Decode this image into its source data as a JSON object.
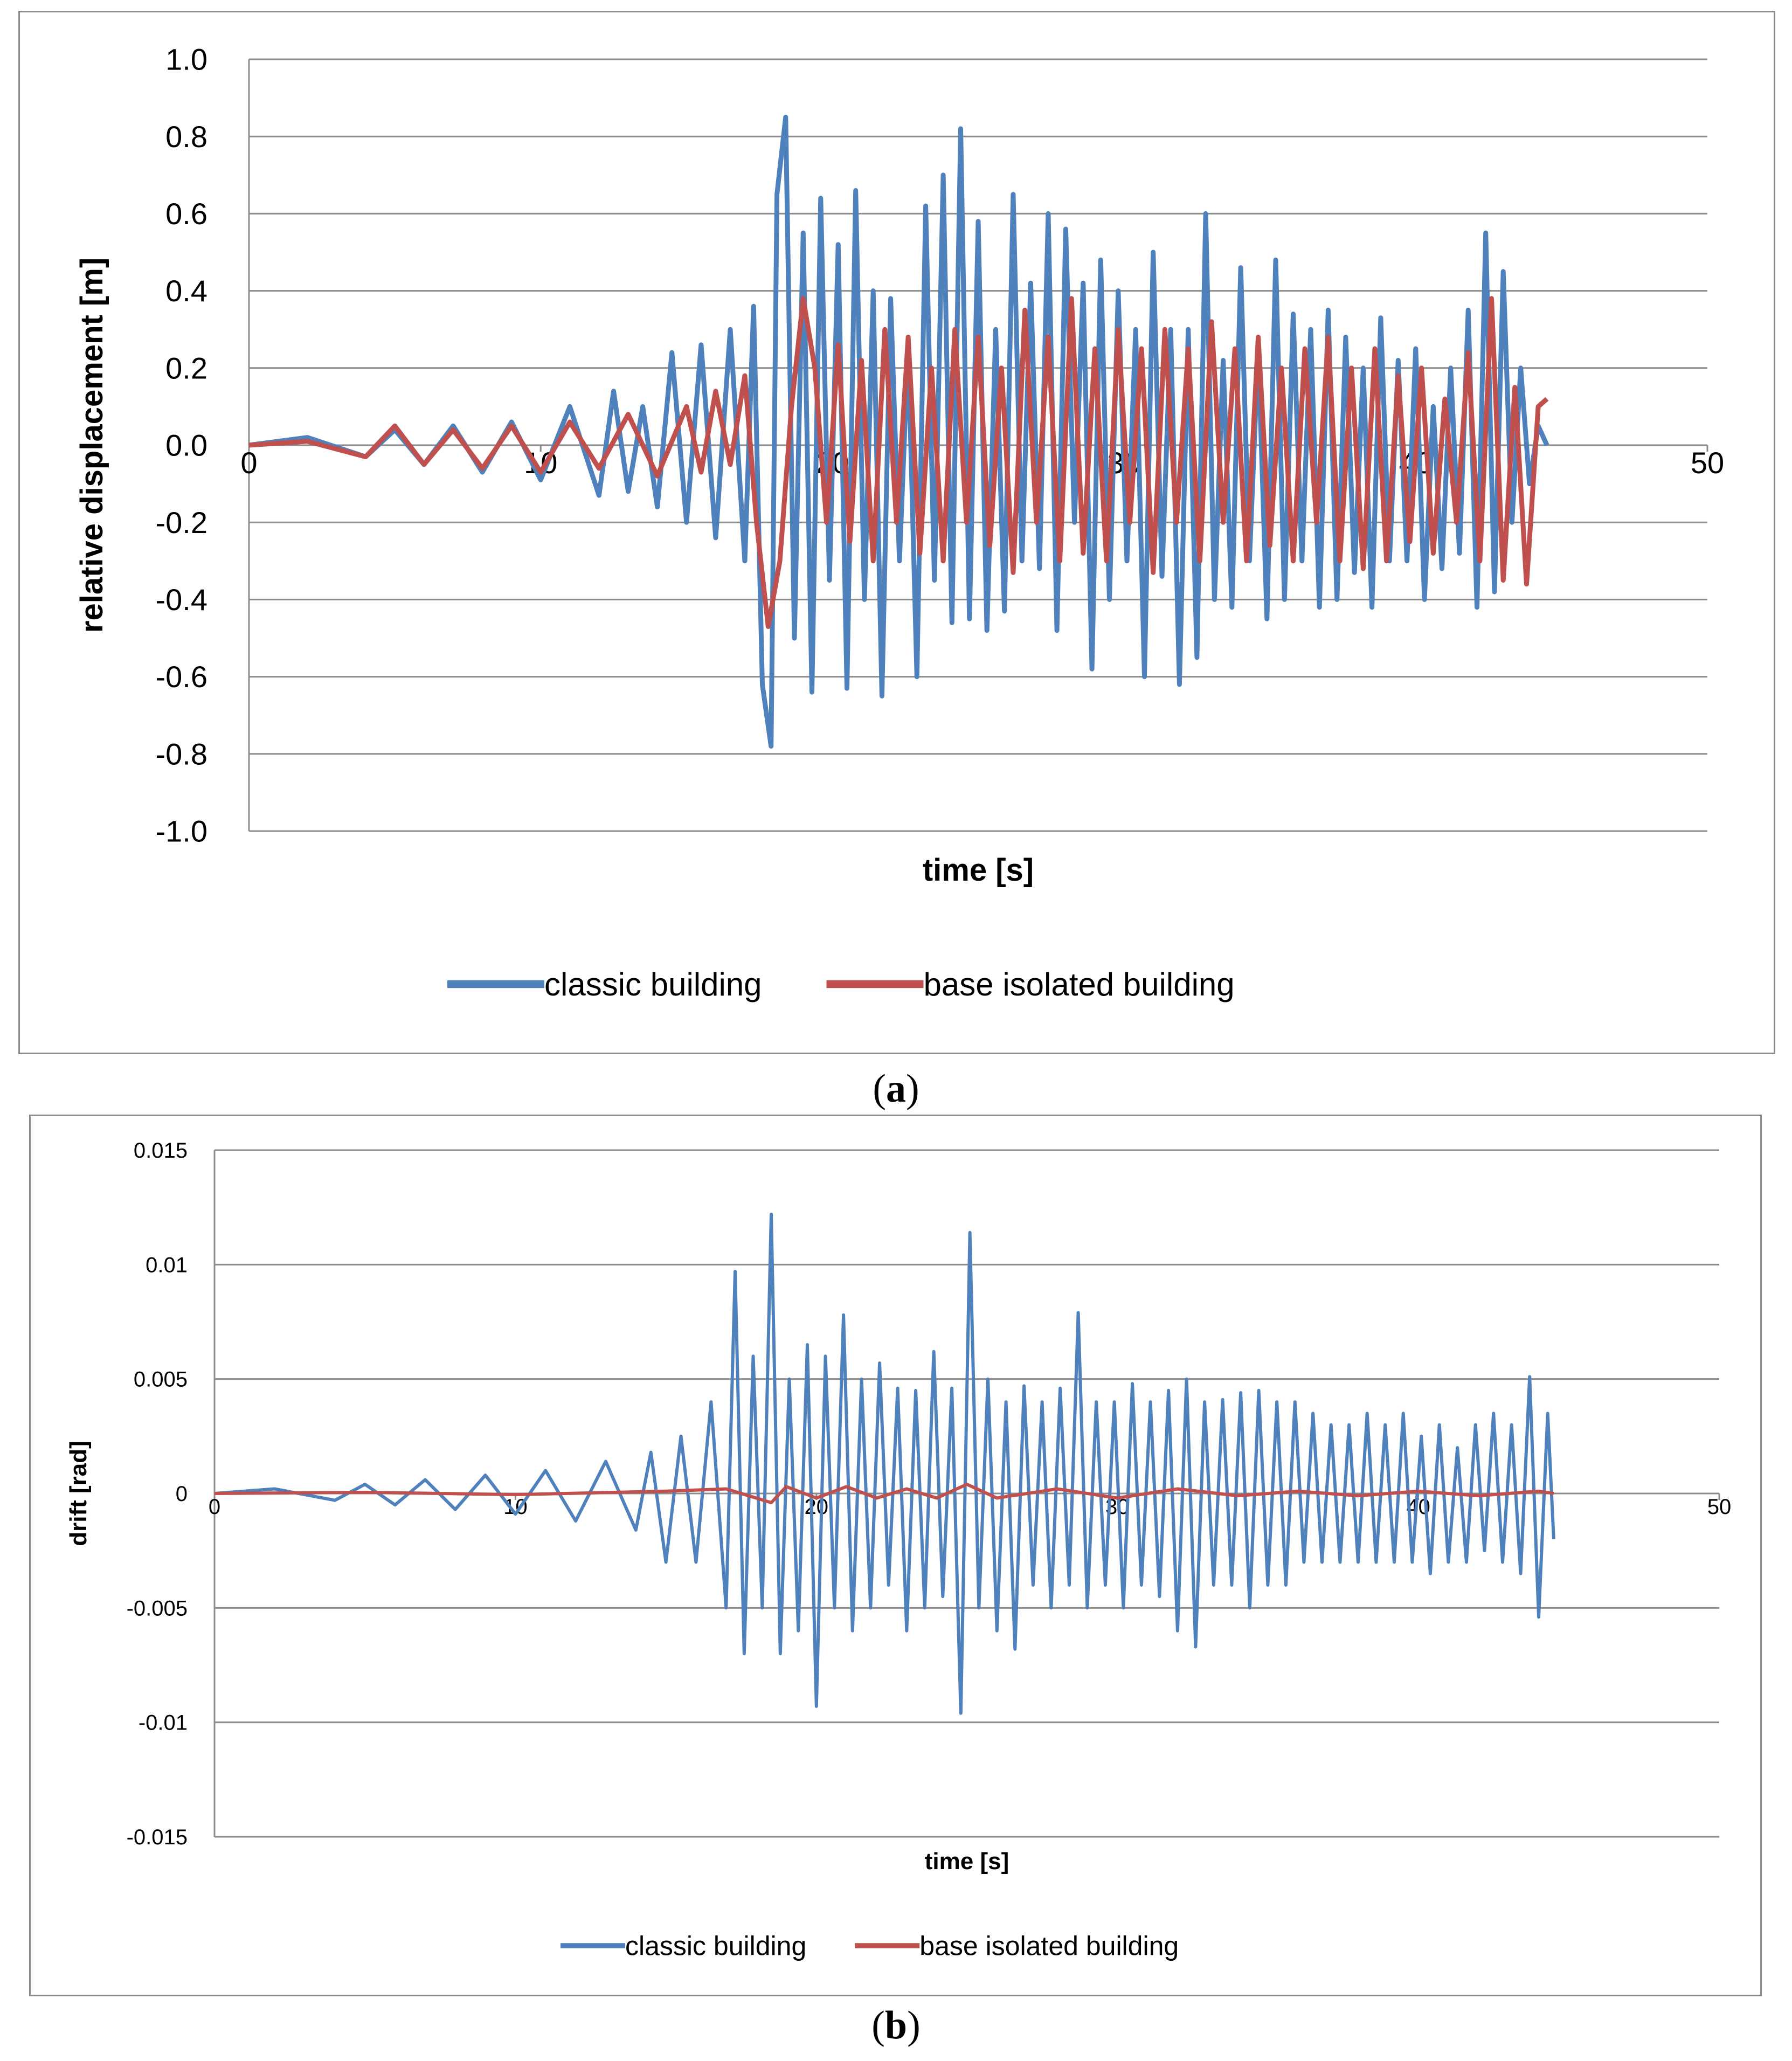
{
  "chart_data": [
    {
      "type": "line",
      "panel": "a",
      "caption": "(a)",
      "xlabel": "time [s]",
      "ylabel": "relative displacement  [m]",
      "xlim": [
        0,
        50
      ],
      "ylim": [
        -1.0,
        1.0
      ],
      "x_ticks": [
        "0",
        "10",
        "20",
        "30",
        "40",
        "50"
      ],
      "x_tick_values": [
        0,
        10,
        20,
        30,
        40,
        50
      ],
      "y_ticks": [
        "1.0",
        "0.8",
        "0.6",
        "0.4",
        "0.2",
        "0.0",
        "-0.2",
        "-0.4",
        "-0.6",
        "-0.8",
        "-1.0"
      ],
      "y_tick_values": [
        1.0,
        0.8,
        0.6,
        0.4,
        0.2,
        0.0,
        -0.2,
        -0.4,
        -0.6,
        -0.8,
        -1.0
      ],
      "grid": true,
      "legend_position": "bottom",
      "series": [
        {
          "name": "classic building",
          "color": "#4f81bd",
          "x": [
            0,
            2,
            4,
            5,
            6,
            7,
            8,
            9,
            10,
            11,
            12,
            12.5,
            13,
            13.5,
            14,
            14.5,
            15,
            15.5,
            16,
            16.5,
            17,
            17.3,
            17.6,
            17.9,
            18.1,
            18.4,
            18.7,
            19.0,
            19.3,
            19.6,
            19.9,
            20.2,
            20.5,
            20.8,
            21.1,
            21.4,
            21.7,
            22.0,
            22.3,
            22.6,
            22.9,
            23.2,
            23.5,
            23.8,
            24.1,
            24.4,
            24.7,
            25.0,
            25.3,
            25.6,
            25.9,
            26.2,
            26.5,
            26.8,
            27.1,
            27.4,
            27.7,
            28.0,
            28.3,
            28.6,
            28.9,
            29.2,
            29.5,
            29.8,
            30.1,
            30.4,
            30.7,
            31.0,
            31.3,
            31.6,
            31.9,
            32.2,
            32.5,
            32.8,
            33.1,
            33.4,
            33.7,
            34.0,
            34.3,
            34.6,
            34.9,
            35.2,
            35.5,
            35.8,
            36.1,
            36.4,
            36.7,
            37.0,
            37.3,
            37.6,
            37.9,
            38.2,
            38.5,
            38.8,
            39.1,
            39.4,
            39.7,
            40.0,
            40.3,
            40.6,
            40.9,
            41.2,
            41.5,
            41.8,
            42.1,
            42.4,
            42.7,
            43.0,
            43.3,
            43.6,
            43.9,
            44.2,
            44.5
          ],
          "values": [
            0,
            0.02,
            -0.03,
            0.04,
            -0.05,
            0.05,
            -0.07,
            0.06,
            -0.09,
            0.1,
            -0.13,
            0.14,
            -0.12,
            0.1,
            -0.16,
            0.24,
            -0.2,
            0.26,
            -0.24,
            0.3,
            -0.3,
            0.36,
            -0.62,
            -0.78,
            0.65,
            0.85,
            -0.5,
            0.55,
            -0.64,
            0.64,
            -0.35,
            0.52,
            -0.63,
            0.66,
            -0.4,
            0.4,
            -0.65,
            0.38,
            -0.3,
            0.26,
            -0.6,
            0.62,
            -0.35,
            0.7,
            -0.46,
            0.82,
            -0.45,
            0.58,
            -0.48,
            0.3,
            -0.43,
            0.65,
            -0.3,
            0.42,
            -0.32,
            0.6,
            -0.48,
            0.56,
            -0.2,
            0.42,
            -0.58,
            0.48,
            -0.4,
            0.4,
            -0.3,
            0.3,
            -0.6,
            0.5,
            -0.34,
            0.3,
            -0.62,
            0.3,
            -0.55,
            0.6,
            -0.4,
            0.22,
            -0.42,
            0.46,
            -0.3,
            0.25,
            -0.45,
            0.48,
            -0.4,
            0.34,
            -0.3,
            0.3,
            -0.42,
            0.35,
            -0.4,
            0.28,
            -0.33,
            0.2,
            -0.42,
            0.33,
            -0.3,
            0.22,
            -0.3,
            0.25,
            -0.4,
            0.1,
            -0.32,
            0.2,
            -0.28,
            0.35,
            -0.42,
            0.55,
            -0.38,
            0.45,
            -0.2,
            0.2,
            -0.1,
            0.05,
            0.0
          ]
        },
        {
          "name": "base isolated building",
          "color": "#c0504d",
          "x": [
            0,
            2,
            4,
            5,
            6,
            7,
            8,
            9,
            10,
            11,
            12,
            13,
            14,
            15,
            15.5,
            16,
            16.5,
            17,
            17.4,
            17.8,
            18.2,
            18.6,
            19.0,
            19.4,
            19.8,
            20.2,
            20.6,
            21.0,
            21.4,
            21.8,
            22.2,
            22.6,
            23.0,
            23.4,
            23.8,
            24.2,
            24.6,
            25.0,
            25.4,
            25.8,
            26.2,
            26.6,
            27.0,
            27.4,
            27.8,
            28.2,
            28.6,
            29.0,
            29.4,
            29.8,
            30.2,
            30.6,
            31.0,
            31.4,
            31.8,
            32.2,
            32.6,
            33.0,
            33.4,
            33.8,
            34.2,
            34.6,
            35.0,
            35.4,
            35.8,
            36.2,
            36.6,
            37.0,
            37.4,
            37.8,
            38.2,
            38.6,
            39.0,
            39.4,
            39.8,
            40.2,
            40.6,
            41.0,
            41.4,
            41.8,
            42.2,
            42.6,
            43.0,
            43.4,
            43.8,
            44.2,
            44.5
          ],
          "values": [
            0,
            0.01,
            -0.03,
            0.05,
            -0.05,
            0.04,
            -0.06,
            0.05,
            -0.07,
            0.06,
            -0.06,
            0.08,
            -0.08,
            0.1,
            -0.07,
            0.14,
            -0.05,
            0.18,
            -0.2,
            -0.47,
            -0.3,
            0.1,
            0.38,
            0.2,
            -0.2,
            0.26,
            -0.25,
            0.22,
            -0.3,
            0.3,
            -0.2,
            0.28,
            -0.28,
            0.2,
            -0.3,
            0.3,
            -0.2,
            0.28,
            -0.26,
            0.2,
            -0.33,
            0.35,
            -0.2,
            0.28,
            -0.3,
            0.38,
            -0.28,
            0.25,
            -0.3,
            0.3,
            -0.2,
            0.25,
            -0.33,
            0.3,
            -0.2,
            0.25,
            -0.3,
            0.32,
            -0.2,
            0.25,
            -0.3,
            0.28,
            -0.26,
            0.2,
            -0.3,
            0.25,
            -0.2,
            0.28,
            -0.3,
            0.2,
            -0.32,
            0.25,
            -0.3,
            0.18,
            -0.25,
            0.2,
            -0.28,
            0.12,
            -0.2,
            0.24,
            -0.3,
            0.38,
            -0.35,
            0.15,
            -0.36,
            0.1,
            0.12
          ]
        }
      ]
    },
    {
      "type": "line",
      "panel": "b",
      "caption": "(b)",
      "xlabel": "time [s]",
      "ylabel": "drift [rad]",
      "xlim": [
        0,
        50
      ],
      "ylim": [
        -0.015,
        0.015
      ],
      "x_ticks": [
        "0",
        "10",
        "20",
        "30",
        "40",
        "50"
      ],
      "x_tick_values": [
        0,
        10,
        20,
        30,
        40,
        50
      ],
      "y_ticks": [
        "0.015",
        "0.01",
        "0.005",
        "0",
        "-0.005",
        "-0.01",
        "-0.015"
      ],
      "y_tick_values": [
        0.015,
        0.01,
        0.005,
        0,
        -0.005,
        -0.01,
        -0.015
      ],
      "grid": true,
      "legend_position": "bottom",
      "series": [
        {
          "name": "classic building",
          "color": "#4f81bd",
          "x": [
            0,
            2,
            4,
            5,
            6,
            7,
            8,
            9,
            10,
            11,
            12,
            13,
            14,
            14.5,
            15,
            15.5,
            16,
            16.5,
            17,
            17.3,
            17.6,
            17.9,
            18.2,
            18.5,
            18.8,
            19.1,
            19.4,
            19.7,
            20.0,
            20.3,
            20.6,
            20.9,
            21.2,
            21.5,
            21.8,
            22.1,
            22.4,
            22.7,
            23.0,
            23.3,
            23.6,
            23.9,
            24.2,
            24.5,
            24.8,
            25.1,
            25.4,
            25.7,
            26.0,
            26.3,
            26.6,
            26.9,
            27.2,
            27.5,
            27.8,
            28.1,
            28.4,
            28.7,
            29.0,
            29.3,
            29.6,
            29.9,
            30.2,
            30.5,
            30.8,
            31.1,
            31.4,
            31.7,
            32.0,
            32.3,
            32.6,
            32.9,
            33.2,
            33.5,
            33.8,
            34.1,
            34.4,
            34.7,
            35.0,
            35.3,
            35.6,
            35.9,
            36.2,
            36.5,
            36.8,
            37.1,
            37.4,
            37.7,
            38.0,
            38.3,
            38.6,
            38.9,
            39.2,
            39.5,
            39.8,
            40.1,
            40.4,
            40.7,
            41.0,
            41.3,
            41.6,
            41.9,
            42.2,
            42.5,
            42.8,
            43.1,
            43.4,
            43.7,
            44.0,
            44.3,
            44.5
          ],
          "values": [
            0,
            0.0002,
            -0.0003,
            0.0004,
            -0.0005,
            0.0006,
            -0.0007,
            0.0008,
            -0.0009,
            0.001,
            -0.0012,
            0.0014,
            -0.0016,
            0.0018,
            -0.003,
            0.0025,
            -0.003,
            0.004,
            -0.005,
            0.0097,
            -0.007,
            0.006,
            -0.005,
            0.0122,
            -0.007,
            0.005,
            -0.006,
            0.0065,
            -0.0093,
            0.006,
            -0.005,
            0.0078,
            -0.006,
            0.005,
            -0.005,
            0.0057,
            -0.004,
            0.0046,
            -0.006,
            0.0045,
            -0.005,
            0.0062,
            -0.0045,
            0.0046,
            -0.0096,
            0.0114,
            -0.005,
            0.005,
            -0.006,
            0.004,
            -0.0068,
            0.0047,
            -0.004,
            0.004,
            -0.005,
            0.0046,
            -0.004,
            0.0079,
            -0.005,
            0.004,
            -0.004,
            0.004,
            -0.005,
            0.0048,
            -0.004,
            0.004,
            -0.0045,
            0.0045,
            -0.006,
            0.005,
            -0.0067,
            0.004,
            -0.004,
            0.0041,
            -0.004,
            0.0044,
            -0.005,
            0.0045,
            -0.004,
            0.004,
            -0.004,
            0.004,
            -0.003,
            0.0035,
            -0.003,
            0.003,
            -0.003,
            0.003,
            -0.003,
            0.0035,
            -0.003,
            0.003,
            -0.003,
            0.0035,
            -0.003,
            0.0025,
            -0.0035,
            0.003,
            -0.003,
            0.002,
            -0.003,
            0.003,
            -0.0025,
            0.0035,
            -0.003,
            0.003,
            -0.0035,
            0.0051,
            -0.0054,
            0.0035,
            -0.002
          ]
        },
        {
          "name": "base isolated building",
          "color": "#c0504d",
          "x": [
            0,
            5,
            10,
            15,
            17,
            18.5,
            19,
            20,
            21,
            22,
            23,
            24,
            25,
            26,
            28,
            30,
            32,
            34,
            36,
            38,
            40,
            42,
            44,
            44.5
          ],
          "values": [
            0,
            5e-05,
            -5e-05,
            0.0001,
            0.0002,
            -0.0004,
            0.0003,
            -0.0002,
            0.0003,
            -0.0002,
            0.0002,
            -0.0002,
            0.0004,
            -0.0002,
            0.0002,
            -0.0002,
            0.0002,
            -0.0001,
            0.0001,
            -0.0001,
            0.0001,
            -0.0001,
            0.0001,
            0.0
          ]
        }
      ]
    }
  ]
}
